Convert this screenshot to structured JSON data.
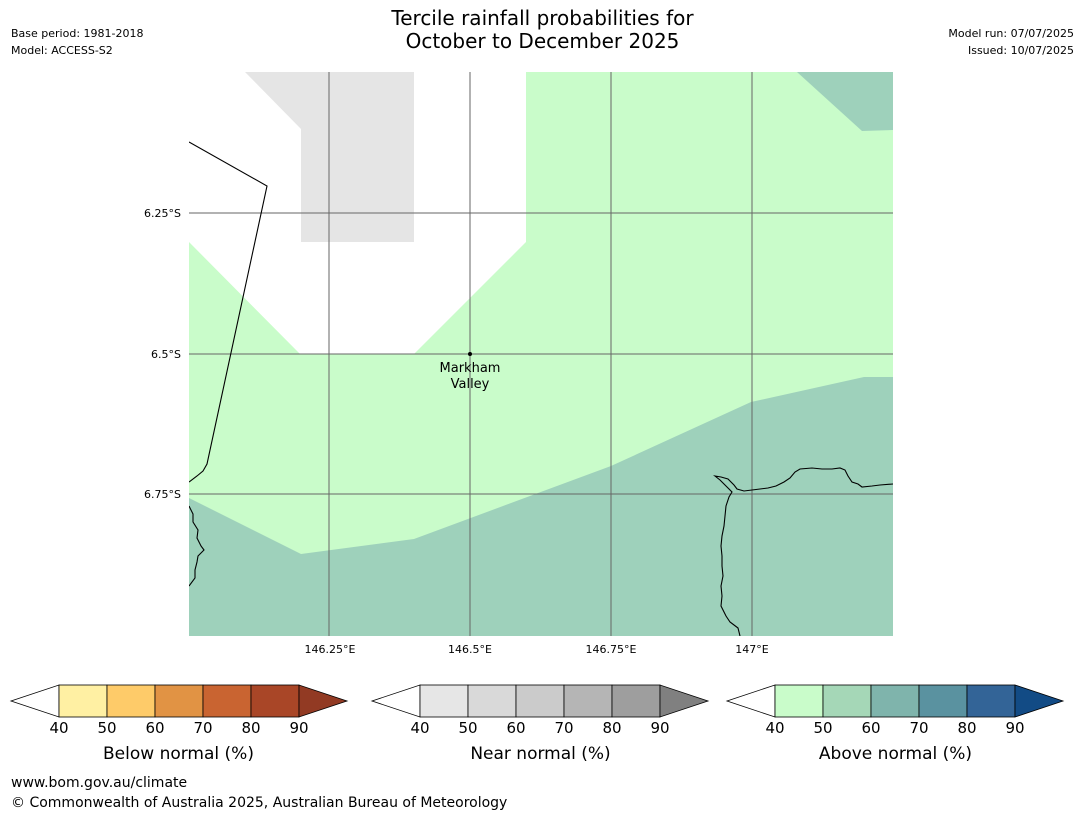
{
  "header": {
    "title_line1": "Tercile rainfall probabilities for",
    "title_line2": "October to December 2025",
    "base_period": "Base period: 1981-2018",
    "model": "Model: ACCESS-S2",
    "model_run": "Model run: 07/07/2025",
    "issued": "Issued: 10/07/2025"
  },
  "map": {
    "place_label_line1": "Markham",
    "place_label_line2": "Valley",
    "lat_labels": [
      "6.25°S",
      "6.5°S",
      "6.75°S"
    ],
    "lon_labels": [
      "146.25°E",
      "146.5°E",
      "146.75°E",
      "147°E"
    ],
    "colors": {
      "above_50": "#9ed1bb",
      "above_40": "#c9fcca",
      "near_40": "#e5e5e5",
      "coast": "#000000",
      "grid": "#666666"
    }
  },
  "colorbars": [
    {
      "label": "Below normal (%)",
      "ticks": [
        "40",
        "50",
        "60",
        "70",
        "80",
        "90"
      ],
      "colors": [
        "#fff0a3",
        "#fecb69",
        "#e19344",
        "#c96431",
        "#a94627"
      ],
      "extend_color": "#923a23"
    },
    {
      "label": "Near normal (%)",
      "ticks": [
        "40",
        "50",
        "60",
        "70",
        "80",
        "90"
      ],
      "colors": [
        "#e6e6e6",
        "#d9d9d9",
        "#cbcbcb",
        "#b5b5b5",
        "#9e9e9e"
      ],
      "extend_color": "#808080"
    },
    {
      "label": "Above normal (%)",
      "ticks": [
        "40",
        "50",
        "60",
        "70",
        "80",
        "90"
      ],
      "colors": [
        "#c9fcca",
        "#a5d7b7",
        "#7fb4ac",
        "#5a92a0",
        "#336497"
      ],
      "extend_color": "#124b85"
    }
  ],
  "footer": {
    "url": "www.bom.gov.au/climate",
    "copyright": "© Commonwealth of Australia 2025, Australian Bureau of Meteorology"
  }
}
